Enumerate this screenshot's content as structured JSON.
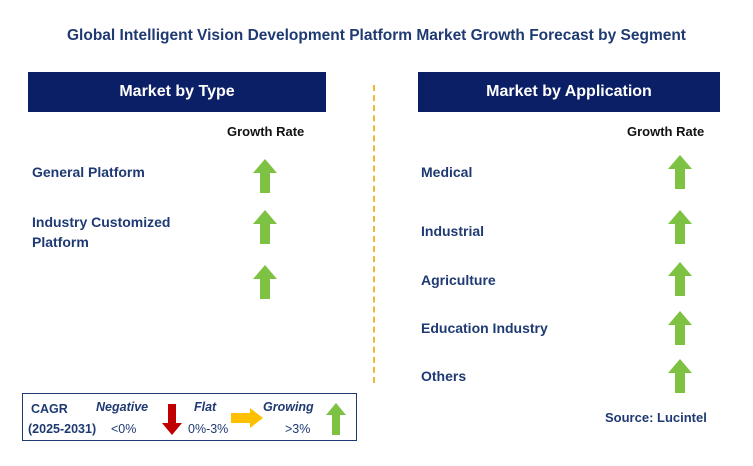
{
  "title": "Global Intelligent Vision Development Platform Market Growth Forecast by Segment",
  "chart_data": {
    "type": "table",
    "panels": [
      {
        "header": "Market by Type",
        "column_label": "Growth Rate",
        "rows": [
          {
            "label": "General Platform",
            "growth": "growing"
          },
          {
            "label": "Industry Customized Platform",
            "growth": "growing"
          },
          {
            "label": "",
            "growth": "growing"
          }
        ]
      },
      {
        "header": "Market by Application",
        "column_label": "Growth Rate",
        "rows": [
          {
            "label": "Medical",
            "growth": "growing"
          },
          {
            "label": "Industrial",
            "growth": "growing"
          },
          {
            "label": "Agriculture",
            "growth": "growing"
          },
          {
            "label": "Education Industry",
            "growth": "growing"
          },
          {
            "label": "Others",
            "growth": "growing"
          }
        ]
      }
    ]
  },
  "legend": {
    "cagr_label": "CAGR",
    "period": "(2025-2031)",
    "negative": {
      "label": "Negative",
      "range": "<0%"
    },
    "flat": {
      "label": "Flat",
      "range": "0%-3%"
    },
    "growing": {
      "label": "Growing",
      "range": ">3%"
    }
  },
  "source": "Source: Lucintel",
  "colors": {
    "header_bg": "#0b1f66",
    "text": "#1f3a73",
    "up_arrow": "#7dc242",
    "down_arrow": "#c00000",
    "flat_arrow": "#ffc000",
    "divider": "#f2b632"
  },
  "icons": {
    "growing": "green-up-arrow-icon",
    "negative": "red-down-arrow-icon",
    "flat": "yellow-right-arrow-icon"
  }
}
